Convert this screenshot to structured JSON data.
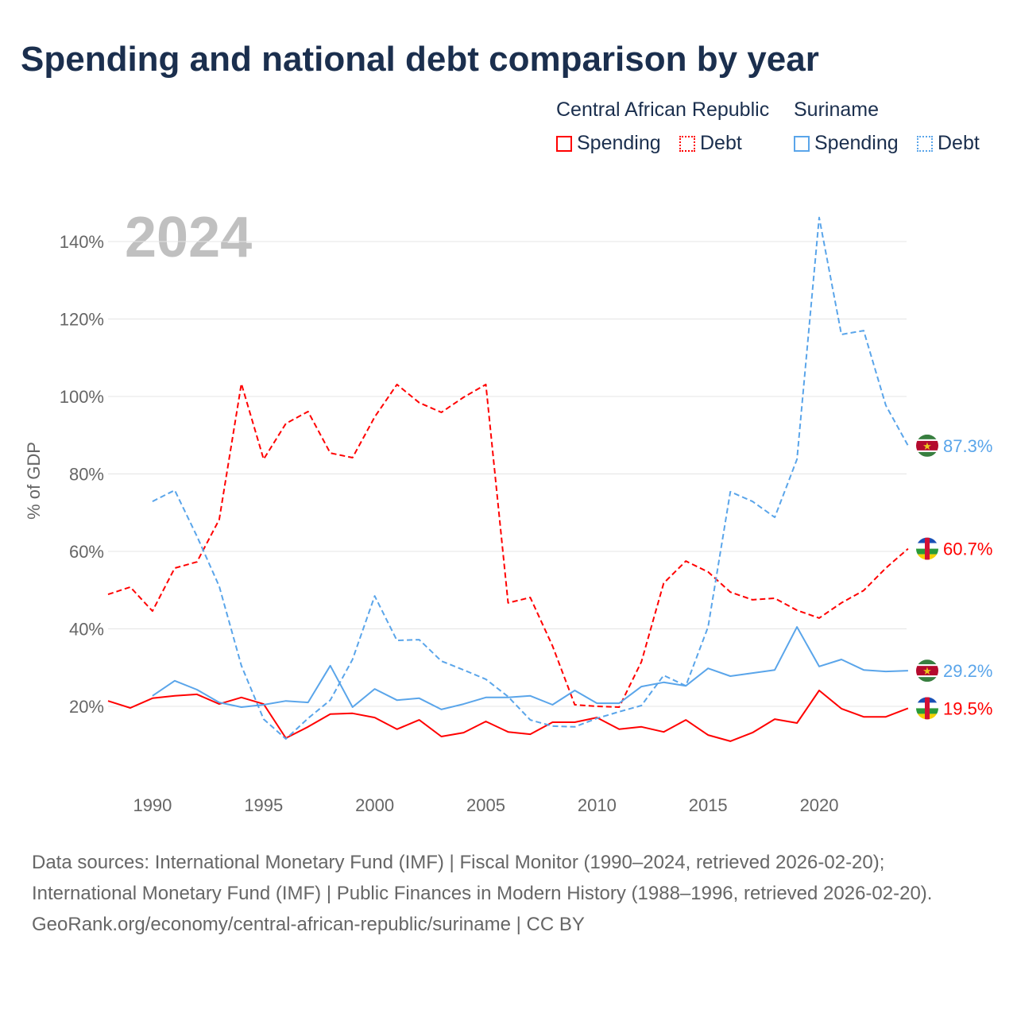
{
  "title": "Spending and national debt comparison by year",
  "legend": {
    "groups": [
      {
        "country": "Central African Republic",
        "items": [
          "Spending",
          "Debt"
        ],
        "color": "#ff0000"
      },
      {
        "country": "Suriname",
        "items": [
          "Spending",
          "Debt"
        ],
        "color": "#5aa5ea"
      }
    ]
  },
  "chart_data": {
    "type": "line",
    "title": "Spending and national debt comparison by year",
    "watermark_year": "2024",
    "xlabel": "",
    "ylabel": "% of GDP",
    "xlim": [
      1988,
      2024
    ],
    "ylim": [
      0,
      150
    ],
    "x_ticks": [
      1990,
      1995,
      2000,
      2005,
      2010,
      2015,
      2020
    ],
    "y_ticks": [
      20,
      40,
      60,
      80,
      100,
      120,
      140
    ],
    "y_tick_labels": [
      "20%",
      "40%",
      "60%",
      "80%",
      "100%",
      "120%",
      "140%"
    ],
    "grid": true,
    "series": [
      {
        "name": "Central African Republic Spending",
        "color": "#ff0000",
        "dash": false,
        "start": 1988,
        "values": [
          21.4,
          19.6,
          22.1,
          22.7,
          23.1,
          20.6,
          22.3,
          20.6,
          11.8,
          14.7,
          18.0,
          18.2,
          17.1,
          14.1,
          16.5,
          12.2,
          13.2,
          16.1,
          13.4,
          12.8,
          15.9,
          15.9,
          17.1,
          14.1,
          14.7,
          13.4,
          16.5,
          12.6,
          11.0,
          13.2,
          16.7,
          15.7,
          24.1,
          19.4,
          17.3,
          17.3,
          19.5
        ],
        "end_label": "19.5%"
      },
      {
        "name": "Central African Republic Debt",
        "color": "#ff0000",
        "dash": true,
        "start": 1988,
        "values": [
          48.9,
          50.8,
          44.6,
          55.7,
          57.3,
          68.2,
          103.3,
          83.8,
          93.0,
          96.1,
          85.4,
          84.2,
          94.7,
          103.1,
          98.4,
          95.9,
          99.8,
          103.1,
          46.7,
          48.1,
          35.6,
          20.4,
          20.0,
          19.8,
          31.5,
          51.8,
          57.5,
          54.7,
          49.5,
          47.5,
          47.9,
          44.8,
          42.8,
          46.7,
          49.9,
          55.7,
          60.7
        ],
        "end_label": "60.7%"
      },
      {
        "name": "Suriname Spending",
        "color": "#5aa5ea",
        "dash": false,
        "start": 1990,
        "values": [
          22.7,
          26.6,
          24.3,
          21.0,
          19.8,
          20.4,
          21.4,
          21.0,
          30.5,
          19.8,
          24.5,
          21.6,
          22.1,
          19.2,
          20.6,
          22.3,
          22.3,
          22.7,
          20.4,
          24.1,
          20.8,
          20.8,
          25.1,
          26.2,
          25.3,
          29.8,
          27.8,
          28.6,
          29.4,
          40.5,
          30.3,
          32.1,
          29.4,
          29.0,
          29.2
        ],
        "end_label": "29.2%"
      },
      {
        "name": "Suriname Debt",
        "color": "#5aa5ea",
        "dash": true,
        "start": 1990,
        "values": [
          72.9,
          75.8,
          63.9,
          51.0,
          30.5,
          16.7,
          11.6,
          16.9,
          21.6,
          32.1,
          48.5,
          37.0,
          37.2,
          31.7,
          29.4,
          27.0,
          22.5,
          16.5,
          14.9,
          14.7,
          16.9,
          18.6,
          20.2,
          28.0,
          25.3,
          40.5,
          75.4,
          72.9,
          68.8,
          83.8,
          146.2,
          116.0,
          117.0,
          97.7,
          87.3
        ],
        "end_label": "87.3%"
      }
    ]
  },
  "footer": {
    "sources": "Data sources: International Monetary Fund (IMF) | Fiscal Monitor (1990–2024, retrieved 2026-02-20); International Monetary Fund (IMF) | Public Finances in Modern History (1988–1996, retrieved 2026-02-20).",
    "credit": "GeoRank.org/economy/central-african-republic/suriname | CC BY"
  }
}
